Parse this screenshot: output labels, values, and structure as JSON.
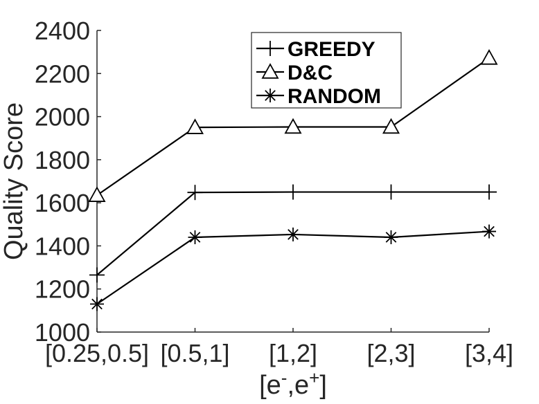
{
  "chart_data": {
    "type": "line",
    "title": "",
    "xlabel": "[e",
    "xlabel_sup1": "-",
    "xlabel_mid": ",e",
    "xlabel_sup2": "+",
    "xlabel_end": "]",
    "ylabel": "Quality Score",
    "categories": [
      "[0.25,0.5]",
      "[0.5,1]",
      "[1,2]",
      "[2,3]",
      "[3,4]"
    ],
    "ylim": [
      1000,
      2400
    ],
    "yticks": [
      1000,
      1200,
      1400,
      1600,
      1800,
      2000,
      2200,
      2400
    ],
    "grid": false,
    "legend_position": "top-right",
    "series": [
      {
        "name": "GREEDY",
        "marker": "plus",
        "values": [
          1265,
          1648,
          1650,
          1650,
          1650
        ]
      },
      {
        "name": "D&C",
        "marker": "triangle",
        "values": [
          1635,
          1950,
          1952,
          1952,
          2272
        ]
      },
      {
        "name": "RANDOM",
        "marker": "asterisk",
        "values": [
          1130,
          1440,
          1453,
          1440,
          1467
        ]
      }
    ]
  }
}
